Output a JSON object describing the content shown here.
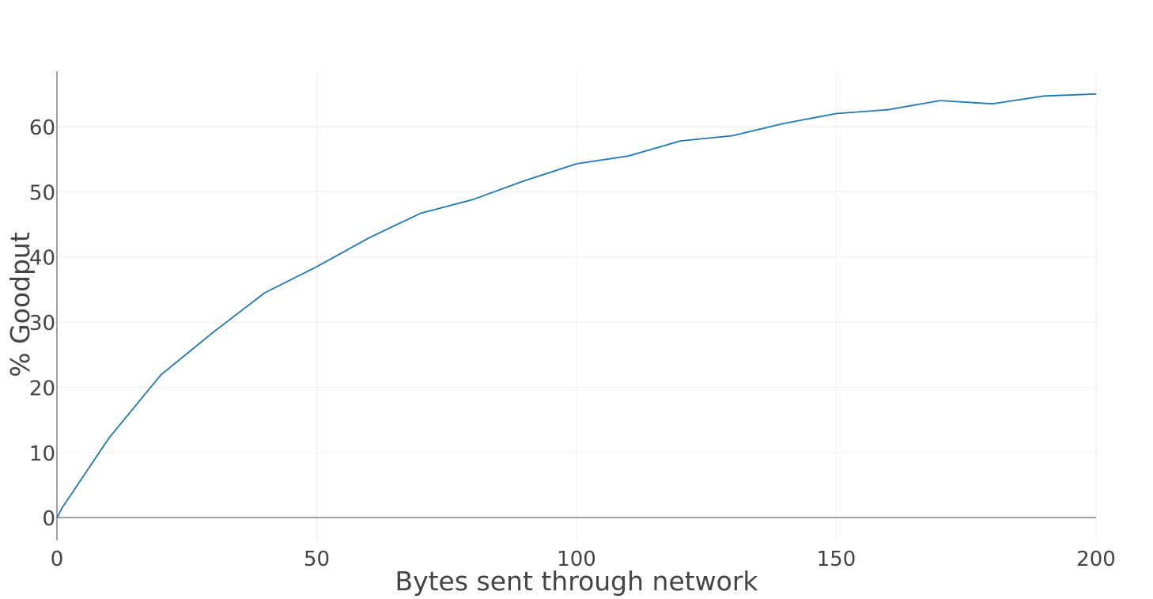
{
  "chart_data": {
    "type": "line",
    "title": "",
    "xlabel": "Bytes sent through network",
    "ylabel": "% Goodput",
    "xlim": [
      0,
      200
    ],
    "ylim": [
      -3.5,
      68.5
    ],
    "x_ticks": [
      0,
      50,
      100,
      150,
      200
    ],
    "y_ticks": [
      0,
      10,
      20,
      30,
      40,
      50,
      60
    ],
    "grid": true,
    "legend": "none",
    "series": [
      {
        "color": "#1f77b4",
        "x": [
          0,
          1,
          10,
          20,
          30,
          40,
          50,
          60,
          70,
          80,
          90,
          100,
          110,
          120,
          130,
          140,
          150,
          160,
          170,
          180,
          190,
          200
        ],
        "y": [
          0,
          1.5,
          12.2,
          21.9,
          28.4,
          34.5,
          38.5,
          42.9,
          46.7,
          48.8,
          51.7,
          54.3,
          55.5,
          57.8,
          58.6,
          60.5,
          62.0,
          62.6,
          64.0,
          63.5,
          64.7,
          65.0
        ]
      }
    ]
  }
}
